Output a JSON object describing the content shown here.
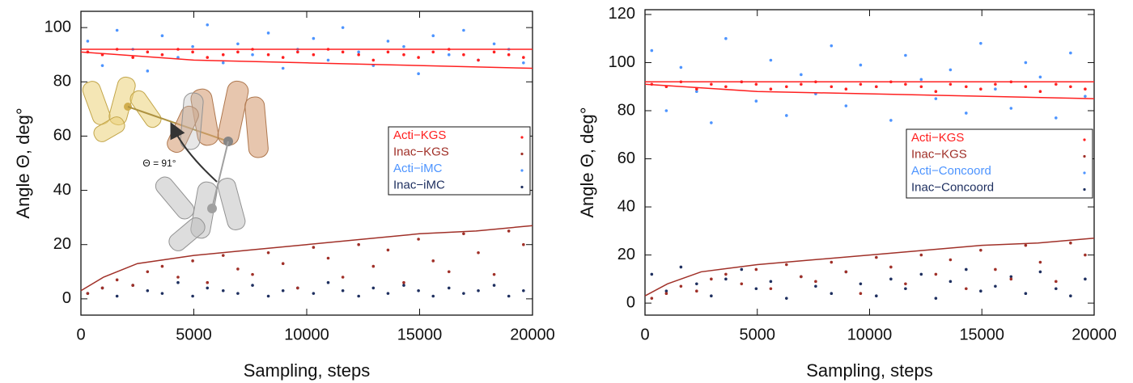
{
  "chart_data": [
    {
      "type": "scatter",
      "xlabel": "Sampling, steps",
      "ylabel": "Angle Θ, deg°",
      "annotation": "Θ = 91°",
      "xlim": [
        0,
        20000
      ],
      "ylim": [
        -6,
        106
      ],
      "xticks": [
        0,
        5000,
        10000,
        15000,
        20000
      ],
      "yticks": [
        0,
        20,
        40,
        60,
        80,
        100
      ],
      "grid": false,
      "legend": "right",
      "x": [
        300,
        950,
        1600,
        2300,
        2950,
        3600,
        4300,
        4950,
        5600,
        6300,
        6950,
        7600,
        8300,
        8950,
        9600,
        10300,
        10950,
        11600,
        12300,
        12950,
        13600,
        14300,
        14950,
        15600,
        16300,
        16950,
        17600,
        18300,
        18950,
        19600
      ],
      "series": [
        {
          "name": "Acti−KGS",
          "color": "#ff2020",
          "values": [
            91,
            90,
            92,
            89,
            91,
            90,
            92,
            91,
            89,
            90,
            91,
            92,
            90,
            89,
            91,
            90,
            92,
            91,
            90,
            88,
            91,
            90,
            89,
            91,
            92,
            90,
            88,
            91,
            90,
            89
          ]
        },
        {
          "name": "Inac−KGS",
          "color": "#a03028",
          "values": [
            2,
            4,
            7,
            5,
            10,
            12,
            8,
            14,
            6,
            16,
            11,
            9,
            17,
            13,
            4,
            19,
            15,
            8,
            20,
            12,
            18,
            6,
            22,
            14,
            10,
            24,
            17,
            9,
            25,
            20
          ]
        },
        {
          "name": "Acti−iMC",
          "color": "#4d94ff",
          "values": [
            95,
            86,
            99,
            92,
            84,
            97,
            89,
            93,
            101,
            87,
            94,
            90,
            98,
            85,
            92,
            96,
            88,
            100,
            91,
            86,
            95,
            93,
            83,
            97,
            90,
            99,
            88,
            94,
            92,
            87
          ]
        },
        {
          "name": "Inac−iMC",
          "color": "#1f3060",
          "values": [
            2,
            4,
            1,
            5,
            3,
            2,
            6,
            1,
            4,
            3,
            2,
            5,
            1,
            3,
            4,
            2,
            6,
            3,
            1,
            4,
            2,
            5,
            3,
            1,
            4,
            2,
            3,
            5,
            1,
            3
          ]
        }
      ],
      "envelopes": [
        {
          "color": "#ff2020",
          "x": [
            0,
            5000,
            10000,
            15000,
            20000
          ],
          "values": [
            92,
            92,
            92,
            92,
            92
          ]
        },
        {
          "color": "#ff2020",
          "x": [
            0,
            5000,
            10000,
            15000,
            20000
          ],
          "values": [
            91,
            88,
            87,
            86,
            85
          ]
        },
        {
          "color": "#a03028",
          "x": [
            0,
            1000,
            2500,
            5000,
            7500,
            10000,
            12500,
            15000,
            17500,
            20000
          ],
          "values": [
            3,
            8,
            13,
            16,
            18,
            20,
            22,
            24,
            25,
            27
          ]
        }
      ]
    },
    {
      "type": "scatter",
      "xlabel": "Sampling, steps",
      "ylabel": "Angle Θ, deg°",
      "xlim": [
        0,
        20000
      ],
      "ylim": [
        -5,
        122
      ],
      "xticks": [
        0,
        5000,
        10000,
        15000,
        20000
      ],
      "yticks": [
        0,
        20,
        40,
        60,
        80,
        100,
        120
      ],
      "grid": false,
      "legend": "right",
      "x": [
        300,
        950,
        1600,
        2300,
        2950,
        3600,
        4300,
        4950,
        5600,
        6300,
        6950,
        7600,
        8300,
        8950,
        9600,
        10300,
        10950,
        11600,
        12300,
        12950,
        13600,
        14300,
        14950,
        15600,
        16300,
        16950,
        17600,
        18300,
        18950,
        19600
      ],
      "series": [
        {
          "name": "Acti−KGS",
          "color": "#ff2020",
          "values": [
            91,
            90,
            92,
            89,
            91,
            90,
            92,
            91,
            89,
            90,
            91,
            92,
            90,
            89,
            91,
            90,
            92,
            91,
            90,
            88,
            91,
            90,
            89,
            91,
            92,
            90,
            88,
            91,
            90,
            89
          ]
        },
        {
          "name": "Inac−KGS",
          "color": "#a03028",
          "values": [
            2,
            4,
            7,
            5,
            10,
            12,
            8,
            14,
            6,
            16,
            11,
            9,
            17,
            13,
            4,
            19,
            15,
            8,
            20,
            12,
            18,
            6,
            22,
            14,
            10,
            24,
            17,
            9,
            25,
            20
          ]
        },
        {
          "name": "Acti−Concoord",
          "color": "#4d94ff",
          "values": [
            105,
            80,
            98,
            88,
            75,
            110,
            92,
            84,
            101,
            78,
            95,
            87,
            107,
            82,
            99,
            90,
            76,
            103,
            93,
            85,
            97,
            79,
            108,
            89,
            81,
            100,
            94,
            77,
            104,
            86
          ]
        },
        {
          "name": "Inac−Concoord",
          "color": "#1f3060",
          "values": [
            12,
            5,
            15,
            8,
            3,
            10,
            14,
            6,
            9,
            2,
            11,
            7,
            4,
            13,
            8,
            3,
            10,
            6,
            12,
            2,
            9,
            14,
            5,
            7,
            11,
            4,
            13,
            6,
            3,
            10
          ]
        }
      ],
      "envelopes": [
        {
          "color": "#ff2020",
          "x": [
            0,
            5000,
            10000,
            15000,
            20000
          ],
          "values": [
            92,
            92,
            92,
            92,
            92
          ]
        },
        {
          "color": "#ff2020",
          "x": [
            0,
            5000,
            10000,
            15000,
            20000
          ],
          "values": [
            91,
            88,
            87,
            86,
            85
          ]
        },
        {
          "color": "#a03028",
          "x": [
            0,
            1000,
            2500,
            5000,
            7500,
            10000,
            12500,
            15000,
            17500,
            20000
          ],
          "values": [
            3,
            8,
            13,
            16,
            18,
            20,
            22,
            24,
            25,
            27
          ]
        }
      ]
    }
  ]
}
